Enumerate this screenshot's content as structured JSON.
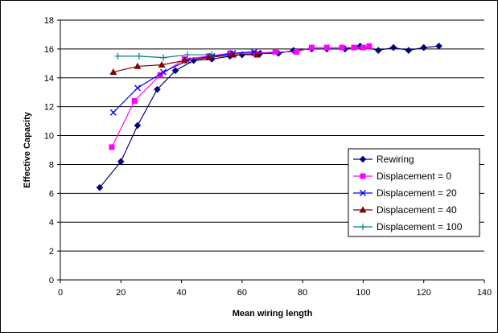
{
  "chart_data": {
    "type": "line",
    "xlabel": "Mean wiring length",
    "ylabel": "Effective Capacity",
    "xlim": [
      0,
      140
    ],
    "ylim": [
      0,
      18
    ],
    "xticks": [
      0,
      20,
      40,
      60,
      80,
      100,
      120,
      140
    ],
    "yticks": [
      0,
      2,
      4,
      6,
      8,
      10,
      12,
      14,
      16,
      18
    ],
    "grid": "horizontal",
    "legend_position": "right",
    "series": [
      {
        "name": "Rewiring",
        "color": "#000080",
        "marker": "diamond",
        "x": [
          13,
          20,
          25.5,
          32,
          38,
          44,
          50,
          56,
          60,
          66,
          72,
          77,
          83,
          88,
          94,
          99,
          105,
          110,
          115,
          120,
          125
        ],
        "y": [
          6.4,
          8.2,
          10.7,
          13.2,
          14.5,
          15.2,
          15.3,
          15.5,
          15.6,
          15.7,
          15.7,
          15.9,
          16.0,
          16.0,
          16.0,
          16.2,
          15.9,
          16.1,
          15.9,
          16.1,
          16.2
        ]
      },
      {
        "name": "Displacement = 0",
        "color": "#ff00ff",
        "marker": "square",
        "x": [
          17,
          24.5,
          33,
          41,
          49,
          56,
          64,
          71,
          78,
          83,
          88,
          93,
          97,
          100,
          102
        ],
        "y": [
          9.2,
          12.4,
          14.2,
          15.3,
          15.5,
          15.7,
          15.7,
          15.8,
          15.8,
          16.1,
          16.1,
          16.1,
          16.1,
          16.1,
          16.2
        ]
      },
      {
        "name": "Displacement = 20",
        "color": "#0000ff",
        "marker": "x",
        "x": [
          17.5,
          25.5,
          34,
          42,
          50,
          57,
          64
        ],
        "y": [
          11.6,
          13.3,
          14.4,
          15.2,
          15.5,
          15.7,
          15.8
        ]
      },
      {
        "name": "Displacement = 40",
        "color": "#800000",
        "marker": "triangle",
        "x": [
          17.5,
          25.5,
          33.5,
          41,
          49,
          57,
          65
        ],
        "y": [
          14.4,
          14.8,
          14.9,
          15.2,
          15.4,
          15.6,
          15.6
        ]
      },
      {
        "name": "Displacement = 100",
        "color": "#008080",
        "marker": "plus",
        "x": [
          19,
          26,
          34,
          42,
          50
        ],
        "y": [
          15.5,
          15.5,
          15.4,
          15.6,
          15.6
        ]
      }
    ]
  }
}
